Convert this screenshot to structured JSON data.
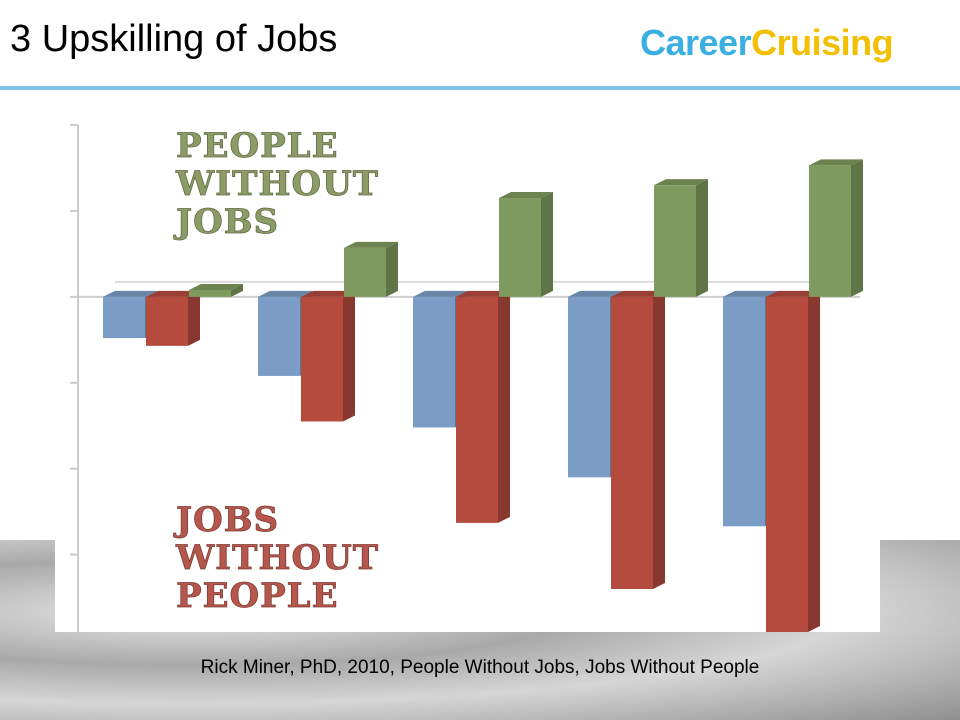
{
  "header": {
    "title": "3 Upskilling of Jobs",
    "logo": [
      "Career",
      "Cruising"
    ]
  },
  "chart_data": {
    "type": "bar",
    "categories": [
      null,
      null,
      null,
      null,
      null
    ],
    "series": [
      {
        "color": "#7b9cc4",
        "values": [
          -0.48,
          -0.92,
          -1.52,
          -2.1,
          -2.67
        ]
      },
      {
        "color": "#b54a3e",
        "values": [
          -0.57,
          -1.45,
          -2.63,
          -3.4,
          -3.9
        ]
      },
      {
        "color": "#7f9a5e",
        "values": [
          0.08,
          0.57,
          1.15,
          1.3,
          1.53
        ]
      }
    ],
    "ylim": [
      -3.9,
      2
    ],
    "yticks": [
      -3,
      -2,
      -1,
      0,
      1,
      2
    ],
    "annotations": [
      {
        "color": "#8c9c66",
        "lines": [
          "PEOPLE",
          "WITHOUT",
          "JOBS"
        ]
      },
      {
        "color": "#b5574c",
        "lines": [
          "JOBS",
          "WITHOUT",
          "PEOPLE"
        ]
      }
    ]
  },
  "caption": "Rick Miner, PhD, 2010, People Without Jobs, Jobs Without People"
}
